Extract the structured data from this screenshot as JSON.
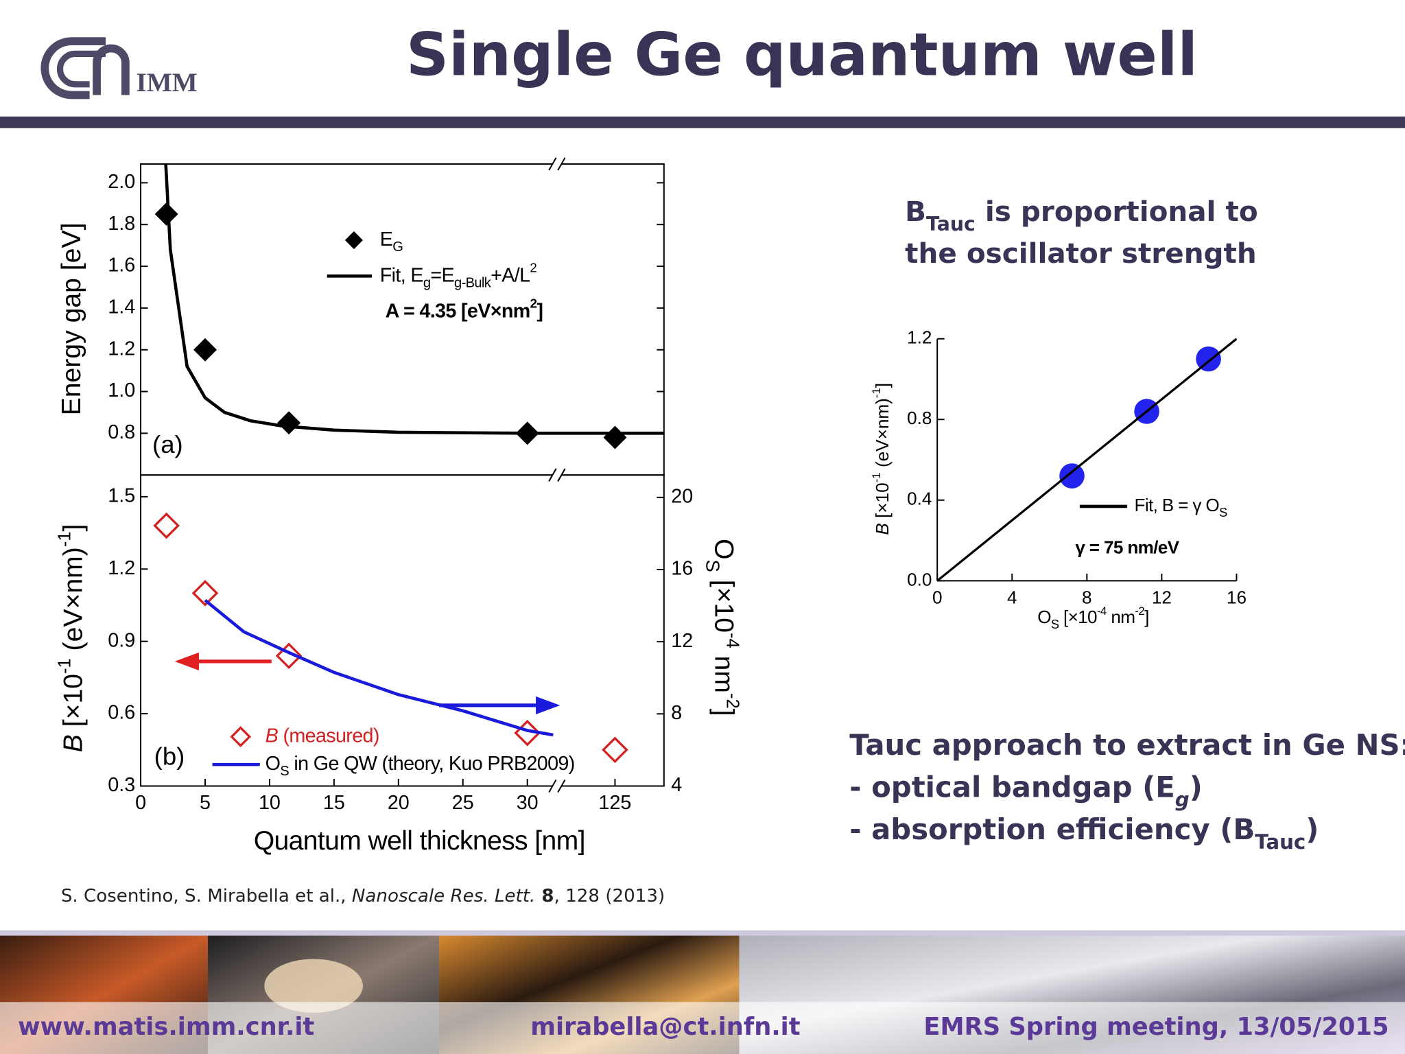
{
  "header": {
    "title": "Single Ge quantum well",
    "logo_text": "IMM"
  },
  "chart_data": [
    {
      "type": "line",
      "panel_label": "(a)",
      "ylabel": [
        {
          "text": "Energy gap [eV]"
        }
      ],
      "xlim": [
        0,
        128.8
      ],
      "xbreak": [
        32.3,
        120.5
      ],
      "ylim": [
        0.6,
        2.09
      ],
      "yticks": [
        0.8,
        {
          "value": 1,
          "label": "1.0"
        },
        1.2,
        1.4,
        1.6,
        1.8,
        {
          "value": 2,
          "label": "2.0"
        }
      ],
      "box": true,
      "series": [
        {
          "name_parts": [
            {
              "text": "E"
            },
            {
              "text": "G",
              "sub": true
            }
          ],
          "type": "scatter",
          "marker": "diamond",
          "filled": true,
          "color": "#000000",
          "x": [
            2,
            5,
            11.5,
            30,
            125
          ],
          "values": [
            1.85,
            1.2,
            0.85,
            0.8,
            0.78
          ]
        },
        {
          "name_parts": [
            {
              "text": "Fit, E"
            },
            {
              "text": "g",
              "sub": true
            },
            {
              "text": "=E"
            },
            {
              "text": "g-Bulk",
              "sub": true
            },
            {
              "text": "+A/L"
            },
            {
              "text": "2",
              "sup": true
            }
          ],
          "type": "line",
          "color": "#000000",
          "x": [
            1.95,
            2.3,
            3.6,
            5,
            6.5,
            8.5,
            11,
            15,
            20,
            30,
            32.3,
            null,
            120.5,
            128.8
          ],
          "values": [
            2.09,
            1.68,
            1.12,
            0.97,
            0.9,
            0.86,
            0.835,
            0.815,
            0.805,
            0.8,
            0.8,
            null,
            0.8,
            0.8
          ]
        }
      ],
      "annotations": [
        [
          {
            "text": "A = 4.35 [eV×nm",
            "bold": true
          },
          {
            "text": "2",
            "sup": true,
            "bold": true
          },
          {
            "text": "]",
            "bold": true
          }
        ]
      ]
    },
    {
      "type": "line",
      "panel_label": "(b)",
      "xlabel": [
        {
          "text": "Quantum well thickness [nm]"
        }
      ],
      "ylabel": [
        {
          "text": "B",
          "italic": true
        },
        {
          "text": " [×10"
        },
        {
          "text": "-1",
          "sup": true
        },
        {
          "text": " (eV×nm)"
        },
        {
          "text": "-1",
          "sup": true
        },
        {
          "text": "]"
        }
      ],
      "y2label": [
        {
          "text": "O"
        },
        {
          "text": "S",
          "sub": true
        },
        {
          "text": " [×10"
        },
        {
          "text": "-4",
          "sup": true
        },
        {
          "text": " nm"
        },
        {
          "text": "-2",
          "sup": true
        },
        {
          "text": "]"
        }
      ],
      "xlim": [
        0,
        128.8
      ],
      "xbreak": [
        32.3,
        120.5
      ],
      "xticks": [
        0,
        5,
        10,
        15,
        20,
        25,
        30,
        125
      ],
      "ylim": [
        0.3,
        1.59
      ],
      "yticks": [
        0.3,
        0.6,
        0.9,
        1.2,
        1.5
      ],
      "y2lim": [
        4,
        21.24
      ],
      "y2ticks": [
        4,
        8,
        12,
        16,
        20
      ],
      "box": true,
      "series": [
        {
          "name_parts": [
            {
              "text": "B",
              "italic": true,
              "color": "#d42020"
            },
            {
              "text": " (measured)",
              "color": "#d42020"
            }
          ],
          "type": "scatter",
          "marker": "diamond",
          "filled": false,
          "color": "#d42020",
          "x": [
            2,
            5,
            11.5,
            30,
            125
          ],
          "values": [
            1.38,
            1.1,
            0.84,
            0.52,
            0.45
          ]
        },
        {
          "name_parts": [
            {
              "text": "O"
            },
            {
              "text": "S",
              "sub": true
            },
            {
              "text": " in Ge QW (theory, Kuo PRB2009)"
            }
          ],
          "type": "line",
          "axis": "y2",
          "color": "#1a1adc",
          "x": [
            5,
            8,
            11.5,
            15,
            20,
            25,
            30,
            32
          ],
          "values": [
            14.3,
            12.55,
            11.4,
            10.3,
            9.07,
            8.17,
            7.08,
            6.83
          ]
        }
      ]
    },
    {
      "type": "scatter",
      "xlabel": [
        {
          "text": "O"
        },
        {
          "text": "S",
          "sub": true
        },
        {
          "text": " [×10"
        },
        {
          "text": "-4",
          "sup": true
        },
        {
          "text": " nm"
        },
        {
          "text": "-2",
          "sup": true
        },
        {
          "text": "]"
        }
      ],
      "ylabel": [
        {
          "text": "B",
          "italic": true
        },
        {
          "text": " [×10"
        },
        {
          "text": "-1",
          "sup": true
        },
        {
          "text": " (eV×nm)"
        },
        {
          "text": "-1",
          "sup": true
        },
        {
          "text": "]"
        }
      ],
      "xlim": [
        0,
        16
      ],
      "xticks": [
        0,
        4,
        8,
        12,
        16
      ],
      "ylim": [
        0,
        1.2
      ],
      "yticks": [
        {
          "value": 0,
          "label": "0.0"
        },
        0.4,
        0.8,
        1.2
      ],
      "box": false,
      "series": [
        {
          "type": "scatter",
          "marker": "circle",
          "filled": true,
          "color": "#2323ee",
          "x": [
            7.2,
            11.2,
            14.5
          ],
          "values": [
            0.52,
            0.84,
            1.1
          ]
        },
        {
          "name_parts": [
            {
              "text": "Fit, B = γ O"
            },
            {
              "text": "S",
              "sub": true
            }
          ],
          "type": "line",
          "color": "#000000",
          "x": [
            0,
            16
          ],
          "values": [
            0,
            1.2
          ]
        }
      ],
      "annotations": [
        [
          {
            "text": "γ = 75 nm/eV",
            "bold": true
          }
        ]
      ]
    }
  ],
  "notes": {
    "btauc": [
      [
        {
          "text": "B"
        },
        {
          "text": "Tauc",
          "sub": true
        },
        {
          "text": " is proportional to"
        }
      ],
      [
        {
          "text": "the oscillator strength"
        }
      ]
    ],
    "tauc": [
      [
        {
          "text": "Tauc approach to extract in Ge NS:"
        }
      ],
      [
        {
          "text": "- optical bandgap (E"
        },
        {
          "text": "g",
          "sub": true,
          "italic": true
        },
        {
          "text": ")"
        }
      ],
      [
        {
          "text": "- absorption efficiency (B"
        },
        {
          "text": "Tauc",
          "sub": true
        },
        {
          "text": ")"
        }
      ]
    ]
  },
  "citation": [
    {
      "text": "S. Cosentino, S. Mirabella et al., "
    },
    {
      "text": "Nanoscale Res. Lett.",
      "italic": true
    },
    {
      "text": " 8",
      "bold": true
    },
    {
      "text": ", 128 (2013)"
    }
  ],
  "footer": {
    "website": "www.matis.imm.cnr.it",
    "email": "mirabella@ct.infn.it",
    "event": "EMRS Spring meeting, 13/05/2015"
  }
}
